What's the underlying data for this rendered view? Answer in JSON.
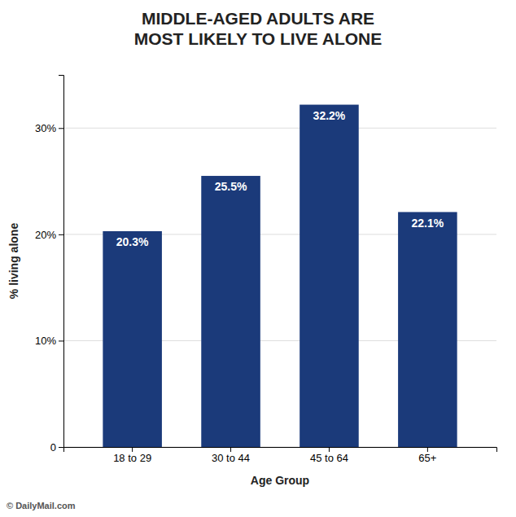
{
  "chart_data": {
    "type": "bar",
    "title": "MIDDLE-AGED ADULTS ARE\nMOST LIKELY TO LIVE ALONE",
    "categories": [
      "18 to 29",
      "30 to 44",
      "45 to 64",
      "65+"
    ],
    "values": [
      20.3,
      25.5,
      32.2,
      22.1
    ],
    "value_labels": [
      "20.3%",
      "25.5%",
      "32.2%",
      "22.1%"
    ],
    "data_labels": true,
    "color": "#1B3A7A",
    "x_label": "Age Group",
    "y_label": "% living alone",
    "ylim": [
      0,
      35
    ],
    "yticks": [
      0,
      {
        "value": 10,
        "label": "10%"
      },
      {
        "value": 20,
        "label": "20%"
      },
      {
        "value": 30,
        "label": "30%"
      }
    ],
    "grid": true,
    "annotations": [
      "© DailyMail.com"
    ]
  }
}
